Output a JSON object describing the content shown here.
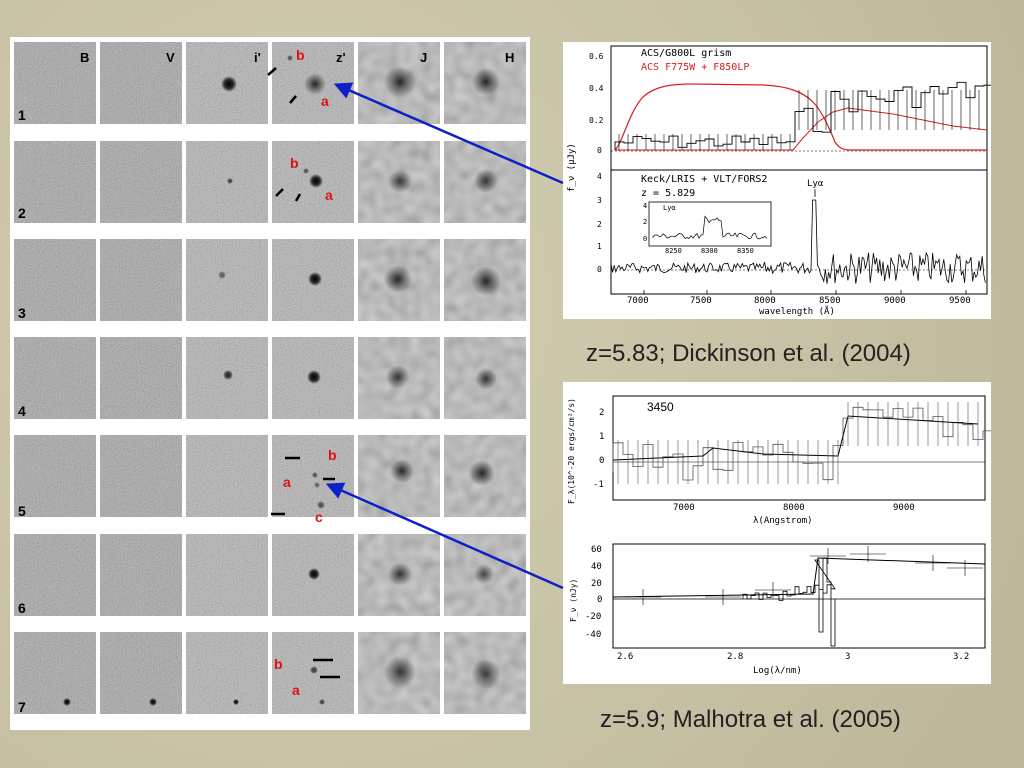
{
  "image_grid": {
    "bands": [
      "B",
      "V",
      "i'",
      "z'",
      "J",
      "H"
    ],
    "rows": [
      "1",
      "2",
      "3",
      "4",
      "5",
      "6",
      "7"
    ],
    "component_labels": {
      "r1": [
        "b",
        "a"
      ],
      "r2": [
        "b",
        "a"
      ],
      "r5": [
        "b",
        "a",
        "c"
      ],
      "r7": [
        "b",
        "a"
      ]
    }
  },
  "top_plot": {
    "upper_legend": [
      "ACS/G800L grism",
      "ACS F775W + F850LP"
    ],
    "upper_yticks": [
      "0.6",
      "0.4",
      "0.2",
      "0"
    ],
    "lower_legend": [
      "Keck/LRIS + VLT/FORS2",
      "z = 5.829"
    ],
    "lower_yticks": [
      "4",
      "3",
      "2",
      "1",
      "0"
    ],
    "line_label": "Lyα",
    "inset_label": "Lyα",
    "inset_yticks": [
      "4",
      "2",
      "0"
    ],
    "inset_xticks": [
      "8250",
      "8300",
      "8350"
    ],
    "ylabel": "f_ν (μJy)",
    "xticks": [
      "7000",
      "7500",
      "8000",
      "8500",
      "9000",
      "9500"
    ],
    "xlabel": "wavelength (Å)",
    "colors": {
      "grism": "#000000",
      "filters": "#d42020"
    }
  },
  "top_caption": "z=5.83; Dickinson et al. (2004)",
  "bottom_plot": {
    "upper_id": "3450",
    "upper_ylabel": "F_λ(10^-20 ergs/cm²/s)",
    "upper_yticks": [
      "2",
      "1",
      "0",
      "-1"
    ],
    "upper_xticks": [
      "7000",
      "8000",
      "9000"
    ],
    "upper_xlabel": "λ(Angstrom)",
    "lower_ylabel": "F_ν (nJy)",
    "lower_yticks": [
      "60",
      "40",
      "20",
      "0",
      "-20",
      "-40"
    ],
    "lower_xticks": [
      "2.6",
      "2.8",
      "3",
      "3.2"
    ],
    "lower_xlabel": "Log(λ/nm)"
  },
  "bottom_caption": "z=5.9; Malhotra et al. (2005)",
  "arrow_color": "#1020c8"
}
